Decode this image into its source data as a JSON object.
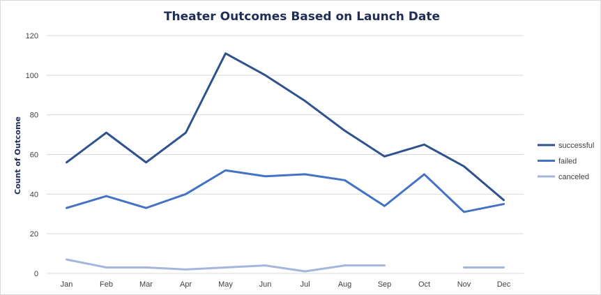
{
  "chart_data": {
    "type": "line",
    "title": "Theater Outcomes Based on Launch Date",
    "xlabel": "",
    "ylabel": "Count of Outcome",
    "categories": [
      "Jan",
      "Feb",
      "Mar",
      "Apr",
      "May",
      "Jun",
      "Jul",
      "Aug",
      "Sep",
      "Oct",
      "Nov",
      "Dec"
    ],
    "ylim": [
      0,
      120
    ],
    "yticks": [
      "0",
      "20",
      "40",
      "60",
      "80",
      "100",
      "120"
    ],
    "grid": true,
    "legend_position": "right",
    "series": [
      {
        "name": "successful",
        "color": "#2f528f",
        "values": [
          56,
          71,
          56,
          71,
          111,
          100,
          87,
          72,
          59,
          65,
          54,
          37
        ]
      },
      {
        "name": "failed",
        "color": "#4472c4",
        "values": [
          33,
          39,
          33,
          40,
          52,
          49,
          50,
          47,
          34,
          50,
          31,
          35
        ]
      },
      {
        "name": "canceled",
        "color": "#a5b6dc",
        "values": [
          7,
          3,
          3,
          2,
          3,
          4,
          1,
          4,
          4,
          null,
          3,
          3
        ]
      }
    ]
  }
}
